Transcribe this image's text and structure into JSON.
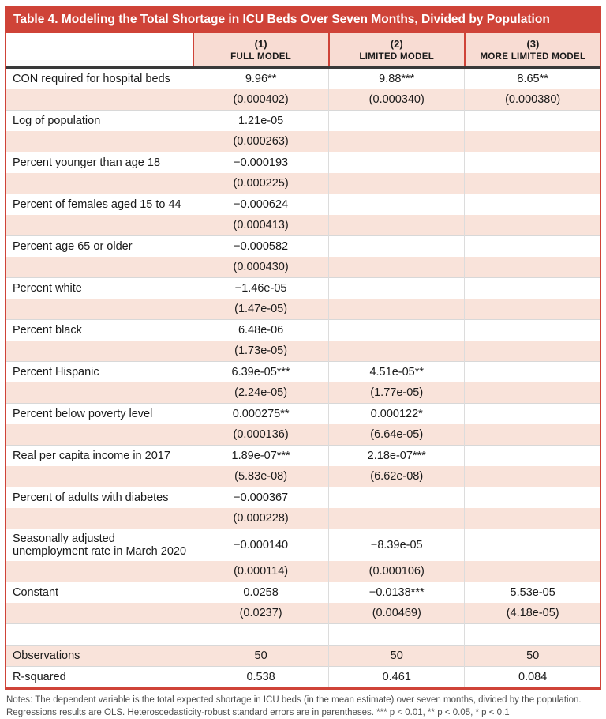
{
  "title": "Table 4. Modeling the Total Shortage in ICU Beds Over Seven Months, Divided by Population",
  "header": {
    "column_numbers": [
      "(1)",
      "(2)",
      "(3)"
    ],
    "column_names": [
      "FULL MODEL",
      "LIMITED MODEL",
      "MORE LIMITED MODEL"
    ]
  },
  "rows": [
    {
      "type": "coef",
      "label": "CON required for hospital beds",
      "values": [
        "9.96**",
        "9.88***",
        "8.65**"
      ]
    },
    {
      "type": "se",
      "label": "",
      "values": [
        "(0.000402)",
        "(0.000340)",
        "(0.000380)"
      ]
    },
    {
      "type": "coef",
      "label": "Log of population",
      "values": [
        "1.21e-05",
        "",
        ""
      ]
    },
    {
      "type": "se",
      "label": "",
      "values": [
        "(0.000263)",
        "",
        ""
      ]
    },
    {
      "type": "coef",
      "label": "Percent younger than age 18",
      "values": [
        "−0.000193",
        "",
        ""
      ]
    },
    {
      "type": "se",
      "label": "",
      "values": [
        "(0.000225)",
        "",
        ""
      ]
    },
    {
      "type": "coef",
      "label": "Percent of females aged 15 to 44",
      "values": [
        "−0.000624",
        "",
        ""
      ]
    },
    {
      "type": "se",
      "label": "",
      "values": [
        "(0.000413)",
        "",
        ""
      ]
    },
    {
      "type": "coef",
      "label": "Percent age 65 or older",
      "values": [
        "−0.000582",
        "",
        ""
      ]
    },
    {
      "type": "se",
      "label": "",
      "values": [
        "(0.000430)",
        "",
        ""
      ]
    },
    {
      "type": "coef",
      "label": "Percent white",
      "values": [
        "−1.46e-05",
        "",
        ""
      ]
    },
    {
      "type": "se",
      "label": "",
      "values": [
        "(1.47e-05)",
        "",
        ""
      ]
    },
    {
      "type": "coef",
      "label": "Percent black",
      "values": [
        "6.48e-06",
        "",
        ""
      ]
    },
    {
      "type": "se",
      "label": "",
      "values": [
        "(1.73e-05)",
        "",
        ""
      ]
    },
    {
      "type": "coef",
      "label": "Percent Hispanic",
      "values": [
        "6.39e-05***",
        "4.51e-05**",
        ""
      ]
    },
    {
      "type": "se",
      "label": "",
      "values": [
        "(2.24e-05)",
        "(1.77e-05)",
        ""
      ]
    },
    {
      "type": "coef",
      "label": "Percent below poverty level",
      "values": [
        "0.000275**",
        "0.000122*",
        ""
      ]
    },
    {
      "type": "se",
      "label": "",
      "values": [
        "(0.000136)",
        "(6.64e-05)",
        ""
      ]
    },
    {
      "type": "coef",
      "label": "Real per capita income in 2017",
      "values": [
        "1.89e-07***",
        "2.18e-07***",
        ""
      ]
    },
    {
      "type": "se",
      "label": "",
      "values": [
        "(5.83e-08)",
        "(6.62e-08)",
        ""
      ]
    },
    {
      "type": "coef",
      "label": "Percent of adults with diabetes",
      "values": [
        "−0.000367",
        "",
        ""
      ]
    },
    {
      "type": "se",
      "label": "",
      "values": [
        "(0.000228)",
        "",
        ""
      ]
    },
    {
      "type": "coef",
      "label": "Seasonally adjusted unemployment rate in March 2020",
      "values": [
        "−0.000140",
        "−8.39e-05",
        ""
      ]
    },
    {
      "type": "se",
      "label": "",
      "values": [
        "(0.000114)",
        "(0.000106)",
        ""
      ]
    },
    {
      "type": "coef",
      "label": "Constant",
      "values": [
        "0.0258",
        "−0.0138***",
        "5.53e-05"
      ]
    },
    {
      "type": "se",
      "label": "",
      "values": [
        "(0.0237)",
        "(0.00469)",
        "(4.18e-05)"
      ]
    },
    {
      "type": "blank",
      "label": "",
      "values": [
        "",
        "",
        ""
      ]
    },
    {
      "type": "stat",
      "label": "Observations",
      "values": [
        "50",
        "50",
        "50"
      ]
    },
    {
      "type": "stat",
      "label": "R-squared",
      "values": [
        "0.538",
        "0.461",
        "0.084"
      ]
    }
  ],
  "notes": "Notes: The dependent variable is the total expected shortage in ICU beds (in the mean estimate) over seven months, divided by the population. Regressions results are OLS. Heteroscedasticity-robust standard errors are in parentheses. *** p < 0.01, ** p < 0.05, * p < 0.1",
  "colors": {
    "accent_red": "#cf4338",
    "header_pink": "#f8dcd3",
    "row_pink": "#f9e3da",
    "rule_dark": "#3a3a3a"
  }
}
